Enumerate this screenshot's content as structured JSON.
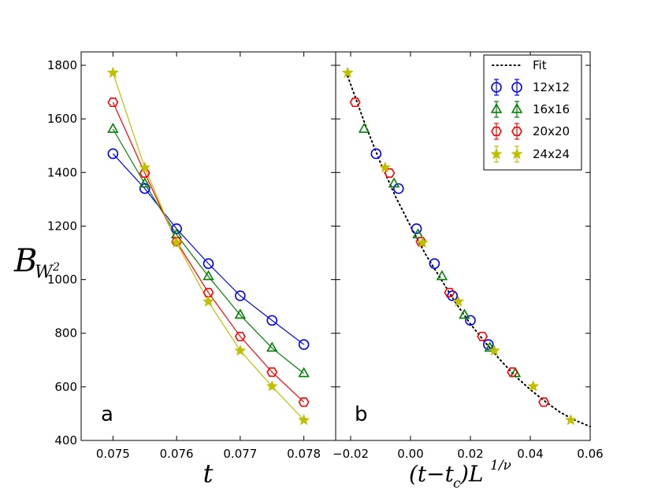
{
  "chart_data": [
    {
      "type": "line",
      "panel_label": "a",
      "xlabel": "t",
      "ylabel_base": "B",
      "ylabel_sub": "W",
      "ylabel_sup": "2",
      "xlim": [
        0.0745,
        0.0785
      ],
      "ylim": [
        400,
        1850
      ],
      "xticks": [
        0.075,
        0.076,
        0.077,
        0.078
      ],
      "xtick_labels": [
        "0.075",
        "0.076",
        "0.077",
        "0.078"
      ],
      "yticks": [
        400,
        600,
        800,
        1000,
        1200,
        1400,
        1600,
        1800
      ],
      "ytick_labels": [
        "400",
        "600",
        "800",
        "1000",
        "1200",
        "1400",
        "1600",
        "1800"
      ],
      "x": [
        0.075,
        0.0755,
        0.076,
        0.0765,
        0.077,
        0.0775,
        0.078
      ],
      "series": [
        {
          "name": "12x12",
          "marker": "circle",
          "color": "#0000ff",
          "values": [
            1470,
            1340,
            1190,
            1060,
            940,
            848,
            758
          ]
        },
        {
          "name": "16x16",
          "marker": "triangle",
          "color": "#008000",
          "values": [
            1562,
            1358,
            1168,
            1012,
            868,
            745,
            650
          ]
        },
        {
          "name": "20x20",
          "marker": "hexagon",
          "color": "#ff0000",
          "values": [
            1662,
            1398,
            1142,
            952,
            788,
            655,
            543
          ]
        },
        {
          "name": "24x24",
          "marker": "star",
          "color": "#bfbf00",
          "values": [
            1772,
            1418,
            1138,
            918,
            735,
            602,
            476
          ]
        }
      ]
    },
    {
      "type": "scatter",
      "panel_label": "b",
      "xlabel_text": "(t−t",
      "xlabel_sub": "c",
      "xlabel_L": ")L",
      "xlabel_sup": "1/ν",
      "xlim": [
        -0.025,
        0.06
      ],
      "ylim": [
        400,
        1850
      ],
      "xticks": [
        -0.02,
        0.0,
        0.02,
        0.04,
        0.06
      ],
      "xtick_labels": [
        "−0.02",
        "0.00",
        "0.02",
        "0.04",
        "0.06"
      ],
      "series": [
        {
          "name": "12x12",
          "marker": "circle",
          "color": "#0000ff",
          "x": [
            -0.0115,
            -0.004,
            0.002,
            0.008,
            0.014,
            0.02,
            0.026
          ],
          "values": [
            1470,
            1340,
            1190,
            1060,
            940,
            848,
            758
          ]
        },
        {
          "name": "16x16",
          "marker": "triangle",
          "color": "#008000",
          "x": [
            -0.0155,
            -0.0055,
            0.0025,
            0.0105,
            0.018,
            0.0265,
            0.035
          ],
          "values": [
            1562,
            1358,
            1168,
            1012,
            868,
            745,
            650
          ]
        },
        {
          "name": "20x20",
          "marker": "hexagon",
          "color": "#ff0000",
          "x": [
            -0.0185,
            -0.007,
            0.0035,
            0.013,
            0.024,
            0.034,
            0.0445
          ],
          "values": [
            1662,
            1398,
            1142,
            952,
            788,
            655,
            543
          ]
        },
        {
          "name": "24x24",
          "marker": "star",
          "color": "#bfbf00",
          "x": [
            -0.021,
            -0.0085,
            0.004,
            0.016,
            0.028,
            0.041,
            0.0535
          ],
          "values": [
            1772,
            1418,
            1138,
            918,
            735,
            602,
            476
          ]
        }
      ],
      "fit": {
        "name": "Fit",
        "x": [
          -0.0215,
          -0.015,
          -0.01,
          -0.005,
          0.0,
          0.005,
          0.01,
          0.015,
          0.02,
          0.025,
          0.03,
          0.035,
          0.04,
          0.045,
          0.05,
          0.055,
          0.06
        ],
        "values": [
          1775,
          1575,
          1435,
          1310,
          1200,
          1095,
          1005,
          915,
          835,
          765,
          700,
          640,
          590,
          545,
          505,
          475,
          452
        ]
      },
      "legend": {
        "position": "top-right",
        "entries": [
          "Fit",
          "12x12",
          "16x16",
          "20x20",
          "24x24"
        ]
      }
    }
  ]
}
